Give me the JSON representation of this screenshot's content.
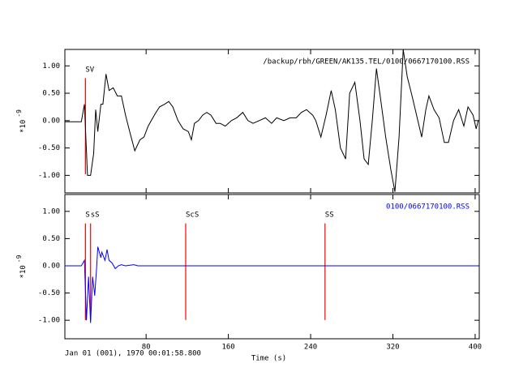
{
  "chart_data": [
    {
      "type": "line",
      "title": "/backup/rbh/GREEN/AK135.TEL/0100/0667170100.RSS",
      "title_color": "#000000",
      "y_label": "*10",
      "y_label_exp": "-9",
      "xlim": [
        1,
        404
      ],
      "ylim": [
        -1.32,
        1.3
      ],
      "xticks": [
        80,
        160,
        240,
        320,
        400
      ],
      "yticks": [
        {
          "value": -1,
          "label": "-1.00"
        },
        {
          "value": -0.5,
          "label": "-0.50"
        },
        {
          "value": 0,
          "label": "0.00"
        },
        {
          "value": 0.5,
          "label": "0.50"
        },
        {
          "value": 1,
          "label": "1.00"
        }
      ],
      "markers": [
        {
          "label": "SV",
          "x": 21
        }
      ],
      "marker_color": "#ff0000",
      "series": [
        {
          "color": "#000000",
          "x": [
            1.2,
            17,
            20,
            23,
            26,
            29,
            31,
            33,
            36,
            38,
            41,
            44,
            48,
            52,
            56,
            60,
            64,
            69,
            74,
            78,
            82,
            88,
            93,
            98,
            102,
            106,
            111,
            116,
            121,
            124,
            127,
            131,
            135,
            139,
            143,
            148,
            152,
            157,
            163,
            168,
            174,
            179,
            184,
            190,
            196,
            202,
            207,
            214,
            220,
            226,
            231,
            236,
            239,
            242,
            245,
            250,
            255,
            260,
            264,
            269,
            274,
            278,
            283,
            288,
            292,
            296,
            300,
            304,
            308,
            313,
            318,
            322,
            326,
            330,
            334,
            338,
            343,
            348,
            352,
            355,
            360,
            365,
            370,
            374,
            379,
            384,
            389,
            393,
            398,
            401,
            403
          ],
          "values": [
            -0.02,
            -0.02,
            0.3,
            -1.0,
            -1.0,
            -0.6,
            0.2,
            -0.2,
            0.3,
            0.3,
            0.85,
            0.55,
            0.6,
            0.45,
            0.45,
            0.1,
            -0.2,
            -0.55,
            -0.35,
            -0.3,
            -0.1,
            0.1,
            0.25,
            0.3,
            0.35,
            0.25,
            0.0,
            -0.15,
            -0.2,
            -0.35,
            -0.05,
            0.0,
            0.1,
            0.15,
            0.1,
            -0.05,
            -0.05,
            -0.1,
            0.0,
            0.05,
            0.15,
            0.0,
            -0.05,
            0.0,
            0.05,
            -0.05,
            0.05,
            0.0,
            0.05,
            0.05,
            0.15,
            0.2,
            0.15,
            0.1,
            0.0,
            -0.3,
            0.1,
            0.55,
            0.2,
            -0.5,
            -0.7,
            0.5,
            0.7,
            0.0,
            -0.7,
            -0.8,
            0.0,
            0.95,
            0.4,
            -0.3,
            -0.9,
            -1.3,
            -0.3,
            1.3,
            0.8,
            0.5,
            0.1,
            -0.3,
            0.2,
            0.45,
            0.2,
            0.05,
            -0.4,
            -0.4,
            0.0,
            0.2,
            -0.1,
            0.25,
            0.1,
            -0.15,
            0.0
          ]
        }
      ]
    },
    {
      "type": "line",
      "title": "0100/0667170100.RSS",
      "title_color": "#0000ff",
      "y_label": "*10",
      "y_label_exp": "-9",
      "x_label": "Time (s)",
      "date": "Jan 01 (001), 1970 00:01:58.800",
      "xlim": [
        1,
        404
      ],
      "ylim": [
        -1.34,
        1.31
      ],
      "xticks": [
        80,
        160,
        240,
        320,
        400
      ],
      "yticks": [
        {
          "value": -1,
          "label": "-1.00"
        },
        {
          "value": -0.5,
          "label": "-0.50"
        },
        {
          "value": 0,
          "label": "0.00"
        },
        {
          "value": 0.5,
          "label": "0.50"
        },
        {
          "value": 1,
          "label": "1.00"
        }
      ],
      "markers": [
        {
          "label": "S",
          "x": 21
        },
        {
          "label": "sS",
          "x": 26
        },
        {
          "label": "ScS",
          "x": 118.5
        },
        {
          "label": "SS",
          "x": 254
        }
      ],
      "marker_color": "#ff0000",
      "series": [
        {
          "color": "#0000ff",
          "x": [
            1,
            17,
            20,
            22,
            24,
            26,
            28,
            30,
            32,
            33,
            36,
            37,
            40,
            42,
            44,
            47,
            50,
            53,
            56,
            60,
            68,
            72,
            403
          ],
          "values": [
            0,
            0,
            0.1,
            -1.0,
            -0.2,
            -1.05,
            -0.2,
            -0.55,
            0.0,
            0.35,
            0.15,
            0.25,
            0.1,
            0.3,
            0.1,
            0.05,
            -0.05,
            0.0,
            0.02,
            0.0,
            0.02,
            0.0,
            0.0
          ]
        }
      ]
    }
  ]
}
